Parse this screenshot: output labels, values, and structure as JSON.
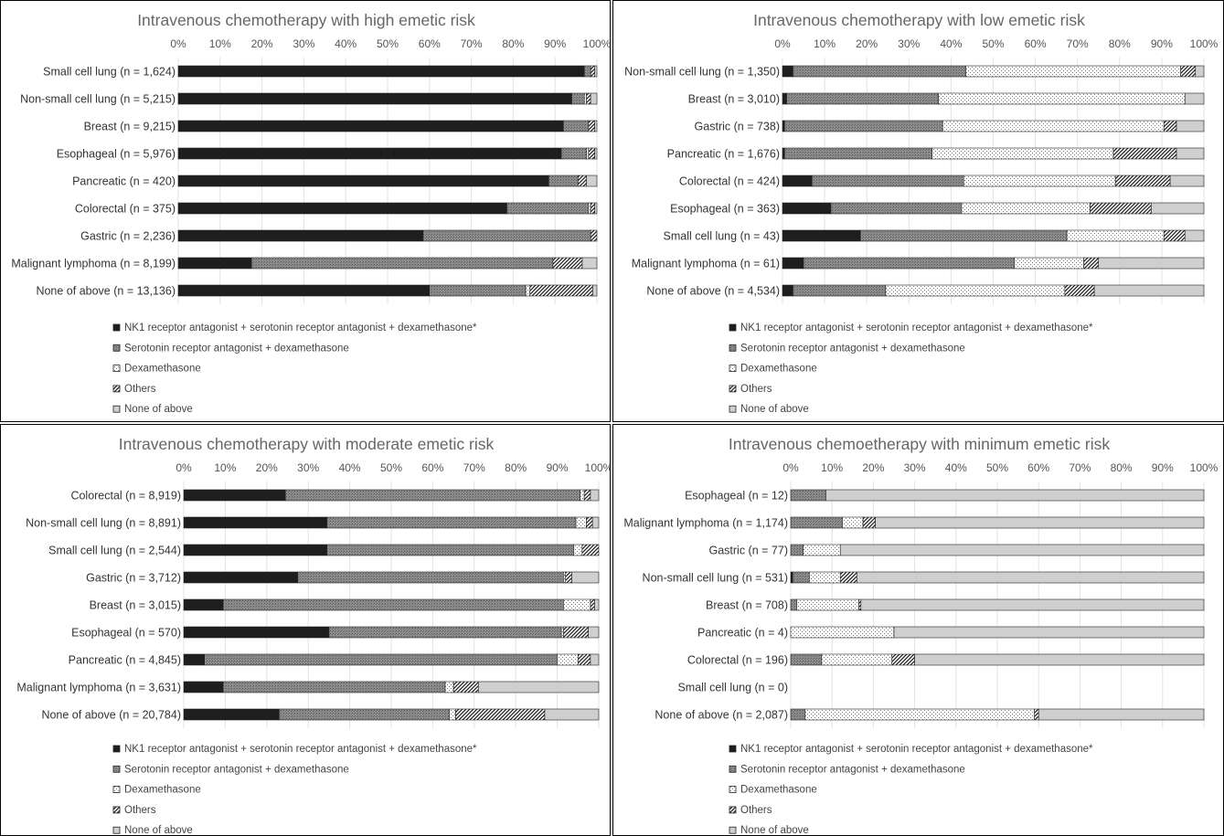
{
  "legend": [
    {
      "label": "NK1 receptor antagonist + serotonin receptor antagonist + dexamethasone*",
      "pattern": "solid-black"
    },
    {
      "label": "Serotonin receptor antagonist + dexamethasone",
      "pattern": "dense-gray"
    },
    {
      "label": "Dexamethasone",
      "pattern": "dotted-light"
    },
    {
      "label": "Others",
      "pattern": "diagonal-hatch"
    },
    {
      "label": "None of above",
      "pattern": "light-gray"
    }
  ],
  "chart_data": [
    {
      "type": "bar",
      "orientation": "horizontal",
      "stacked": true,
      "title": "Intravenous chemotherapy with high emetic risk",
      "xlim": [
        0,
        100
      ],
      "x_ticks": [
        "0%",
        "10%",
        "20%",
        "30%",
        "40%",
        "50%",
        "60%",
        "70%",
        "80%",
        "90%",
        "100%"
      ],
      "categories": [
        "Small cell lung (n = 1,624)",
        "Non-small cell lung (n = 5,215)",
        "Breast (n = 9,215)",
        "Esophageal (n = 5,976)",
        "Pancreatic (n = 420)",
        "Colorectal (n = 375)",
        "Gastric (n = 2,236)",
        "Malignant lymphoma (n = 8,199)",
        "None of above (n = 13,136)"
      ],
      "series": [
        {
          "name": "NK1 receptor antagonist + serotonin receptor antagonist + dexamethasone*",
          "values": [
            97,
            94,
            92,
            91.5,
            88.5,
            78.5,
            58.5,
            17.5,
            60
          ]
        },
        {
          "name": "Serotonin receptor antagonist + dexamethasone",
          "values": [
            1.5,
            3,
            6,
            6,
            7,
            19.5,
            40,
            72,
            23
          ]
        },
        {
          "name": "Dexamethasone",
          "values": [
            0,
            0.5,
            0,
            0.5,
            0,
            0.5,
            0,
            0,
            1
          ]
        },
        {
          "name": "Others",
          "values": [
            1,
            1,
            1.5,
            1.5,
            2,
            1,
            1.5,
            7,
            15
          ]
        },
        {
          "name": "None of above",
          "values": [
            0.5,
            1.5,
            0.5,
            0.5,
            2.5,
            0.5,
            0,
            3.5,
            1
          ]
        }
      ]
    },
    {
      "type": "bar",
      "orientation": "horizontal",
      "stacked": true,
      "title": "Intravenous chemotherapy with low emetic risk",
      "xlim": [
        0,
        100
      ],
      "x_ticks": [
        "0%",
        "10%",
        "20%",
        "30%",
        "40%",
        "50%",
        "60%",
        "70%",
        "80%",
        "90%",
        "100%"
      ],
      "categories": [
        "Non-small cell lung (n = 1,350)",
        "Breast (n = 3,010)",
        "Gastric (n = 738)",
        "Pancreatic (n = 1,676)",
        "Colorectal (n = 424)",
        "Esophageal (n = 363)",
        "Small cell lung (n = 43)",
        "Malignant lymphoma (n = 61)",
        "None of above (n = 4,534)"
      ],
      "series": [
        {
          "name": "NK1 receptor antagonist + serotonin receptor antagonist + dexamethasone*",
          "values": [
            2.5,
            1,
            0.5,
            0.5,
            7,
            11.5,
            18.5,
            5,
            2.5
          ]
        },
        {
          "name": "Serotonin receptor antagonist + dexamethasone",
          "values": [
            41,
            36,
            37.5,
            35,
            36,
            31,
            49,
            50,
            22
          ]
        },
        {
          "name": "Dexamethasone",
          "values": [
            51,
            58.5,
            52.5,
            43,
            36,
            30.5,
            23,
            16.5,
            42.5
          ]
        },
        {
          "name": "Others",
          "values": [
            3.5,
            0,
            3,
            15,
            13,
            14.5,
            5,
            3.5,
            7
          ]
        },
        {
          "name": "None of above",
          "values": [
            2,
            4.5,
            6.5,
            6.5,
            8,
            12.5,
            4.5,
            25,
            26
          ]
        }
      ]
    },
    {
      "type": "bar",
      "orientation": "horizontal",
      "stacked": true,
      "title": "Intravenous chemotherapy with moderate emetic risk",
      "xlim": [
        0,
        100
      ],
      "x_ticks": [
        "0%",
        "10%",
        "20%",
        "30%",
        "40%",
        "50%",
        "60%",
        "70%",
        "80%",
        "90%",
        "100%"
      ],
      "categories": [
        "Colorectal (n = 8,919)",
        "Non-small cell lung (n = 8,891)",
        "Small cell lung (n = 2,544)",
        "Gastric (n = 3,712)",
        "Breast (n = 3,015)",
        "Esophageal (n = 570)",
        "Pancreatic (n = 4,845)",
        "Malignant lymphoma (n = 3,631)",
        "None of above (n = 20,784)"
      ],
      "series": [
        {
          "name": "NK1 receptor antagonist + serotonin receptor antagonist + dexamethasone*",
          "values": [
            24.5,
            34.5,
            34.5,
            27.5,
            9.5,
            35,
            5,
            9.5,
            23
          ]
        },
        {
          "name": "Serotonin receptor antagonist + dexamethasone",
          "values": [
            71,
            60,
            59.5,
            64,
            82,
            56,
            85,
            53.5,
            41
          ]
        },
        {
          "name": "Dexamethasone",
          "values": [
            1,
            2.5,
            2,
            0.5,
            6.5,
            0.5,
            5,
            2,
            1.5
          ]
        },
        {
          "name": "Others",
          "values": [
            1.5,
            1.5,
            4,
            1.5,
            1,
            6,
            3,
            6,
            21.5
          ]
        },
        {
          "name": "None of above",
          "values": [
            2,
            1.5,
            0,
            6.5,
            1,
            2.5,
            2,
            29,
            13
          ]
        }
      ]
    },
    {
      "type": "bar",
      "orientation": "horizontal",
      "stacked": true,
      "title": "Intravenous chemoetherapy with minimum emetic risk",
      "xlim": [
        0,
        100
      ],
      "x_ticks": [
        "0%",
        "10%",
        "20%",
        "30%",
        "40%",
        "50%",
        "60%",
        "70%",
        "80%",
        "90%",
        "100%"
      ],
      "categories": [
        "Esophageal (n = 12)",
        "Malignant lymphoma (n = 1,174)",
        "Gastric (n = 77)",
        "Non-small cell lung (n = 531)",
        "Breast (n = 708)",
        "Pancreatic (n = 4)",
        "Colorectal (n = 196)",
        "Small cell lung (n = 0)",
        "None of above (n = 2,087)"
      ],
      "series": [
        {
          "name": "NK1 receptor antagonist + serotonin receptor antagonist + dexamethasone*",
          "values": [
            0,
            0,
            0,
            0.5,
            0,
            0,
            0,
            0,
            0
          ]
        },
        {
          "name": "Serotonin receptor antagonist + dexamethasone",
          "values": [
            8.5,
            12.5,
            3,
            4,
            1.5,
            0,
            7.5,
            0,
            3.5
          ]
        },
        {
          "name": "Dexamethasone",
          "values": [
            0,
            5,
            9,
            7.5,
            15,
            25,
            17,
            0,
            55.5
          ]
        },
        {
          "name": "Others",
          "values": [
            0,
            3,
            0,
            4,
            0.5,
            0,
            5.5,
            0,
            1
          ]
        },
        {
          "name": "None of above",
          "values": [
            91.5,
            79.5,
            88,
            84,
            83,
            75,
            70,
            0,
            40
          ]
        }
      ]
    }
  ]
}
